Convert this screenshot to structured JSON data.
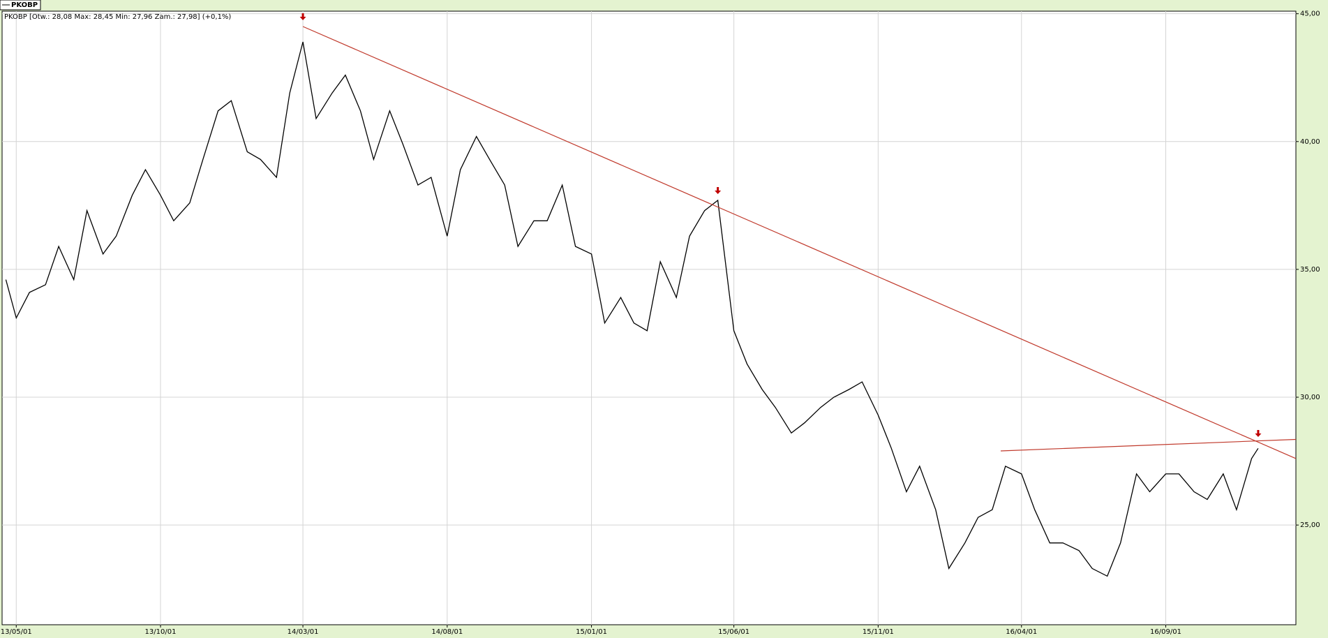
{
  "chart_data": {
    "type": "line",
    "title": "PKOBP [Otw.: 28,08 Max: 28,45 Min: 27,96 Zam.: 27,98] (+0,1%)",
    "x": [
      "2013-04-20",
      "2013-05-01",
      "2013-05-15",
      "2013-06-01",
      "2013-06-15",
      "2013-07-01",
      "2013-07-15",
      "2013-08-01",
      "2013-08-15",
      "2013-09-01",
      "2013-09-15",
      "2013-10-01",
      "2013-10-15",
      "2013-11-01",
      "2013-11-15",
      "2013-12-01",
      "2013-12-15",
      "2014-01-01",
      "2014-01-15",
      "2014-02-01",
      "2014-02-15",
      "2014-03-01",
      "2014-03-15",
      "2014-04-01",
      "2014-04-15",
      "2014-05-01",
      "2014-05-15",
      "2014-06-01",
      "2014-06-15",
      "2014-07-01",
      "2014-07-15",
      "2014-08-01",
      "2014-08-15",
      "2014-09-01",
      "2014-09-15",
      "2014-10-01",
      "2014-10-15",
      "2014-11-01",
      "2014-11-15",
      "2014-12-01",
      "2014-12-15",
      "2015-01-01",
      "2015-01-15",
      "2015-02-01",
      "2015-02-15",
      "2015-03-01",
      "2015-03-15",
      "2015-04-01",
      "2015-04-15",
      "2015-05-01",
      "2015-05-15",
      "2015-06-01",
      "2015-06-15",
      "2015-07-01",
      "2015-07-15",
      "2015-08-01",
      "2015-08-15",
      "2015-09-01",
      "2015-09-15",
      "2015-10-01",
      "2015-10-15",
      "2015-11-01",
      "2015-11-15",
      "2015-12-01",
      "2015-12-15",
      "2016-01-01",
      "2016-01-15",
      "2016-02-01",
      "2016-02-15",
      "2016-03-01",
      "2016-03-15",
      "2016-04-01",
      "2016-04-15",
      "2016-05-01",
      "2016-05-15",
      "2016-06-01",
      "2016-06-15",
      "2016-07-01",
      "2016-07-15",
      "2016-08-01",
      "2016-08-15",
      "2016-09-01",
      "2016-09-15",
      "2016-10-01",
      "2016-10-15",
      "2016-11-01",
      "2016-11-15",
      "2016-12-01",
      "2016-12-08"
    ],
    "series": [
      {
        "name": "PKOBP",
        "color": "#000000",
        "values": [
          34.6,
          33.1,
          34.1,
          34.4,
          35.9,
          34.6,
          37.3,
          35.6,
          36.3,
          37.9,
          38.9,
          37.9,
          36.9,
          37.6,
          39.3,
          41.2,
          41.6,
          39.6,
          39.3,
          38.6,
          41.9,
          43.9,
          40.9,
          41.9,
          42.6,
          41.2,
          39.3,
          41.2,
          39.9,
          38.3,
          38.6,
          36.3,
          38.9,
          40.2,
          39.3,
          38.3,
          35.9,
          36.9,
          36.9,
          38.3,
          35.9,
          35.6,
          32.9,
          33.9,
          32.9,
          32.6,
          35.3,
          33.9,
          36.3,
          37.3,
          37.7,
          32.6,
          31.3,
          30.3,
          29.6,
          28.6,
          29.0,
          29.6,
          30.0,
          30.3,
          30.6,
          29.3,
          28.0,
          26.3,
          27.3,
          25.6,
          23.3,
          24.3,
          25.3,
          25.6,
          27.3,
          27.0,
          25.6,
          24.3,
          24.3,
          24.0,
          23.3,
          23.0,
          24.3,
          27.0,
          26.3,
          27.0,
          27.0,
          26.3,
          26.0,
          27.0,
          25.6,
          27.6,
          28.0
        ]
      }
    ],
    "trendlines": [
      {
        "color": "#c0392b",
        "x": [
          "2014-03-01",
          "2017-01-17"
        ],
        "y": [
          44.5,
          27.6
        ]
      },
      {
        "color": "#c0392b",
        "x": [
          "2016-03-10",
          "2017-01-17"
        ],
        "y": [
          27.9,
          28.35
        ]
      }
    ],
    "markers": [
      {
        "x": "2014-03-01",
        "y": 44.5
      },
      {
        "x": "2015-05-15",
        "y": 37.7
      },
      {
        "x": "2016-12-08",
        "y": 28.2
      }
    ],
    "xlim": [
      "2013-04-16",
      "2017-01-17"
    ],
    "xticks": [
      {
        "value": "2013-05-01",
        "label": "13/05/01"
      },
      {
        "value": "2013-10-01",
        "label": "13/10/01"
      },
      {
        "value": "2014-03-01",
        "label": "14/03/01"
      },
      {
        "value": "2014-08-01",
        "label": "14/08/01"
      },
      {
        "value": "2015-01-01",
        "label": "15/01/01"
      },
      {
        "value": "2015-06-01",
        "label": "15/06/01"
      },
      {
        "value": "2015-11-01",
        "label": "15/11/01"
      },
      {
        "value": "2016-04-01",
        "label": "16/04/01"
      },
      {
        "value": "2016-09-01",
        "label": "16/09/01"
      }
    ],
    "ylim": [
      21.1,
      45.1
    ],
    "yticks": [
      {
        "value": 25,
        "label": "25,00"
      },
      {
        "value": 30,
        "label": "30,00"
      },
      {
        "value": 35,
        "label": "35,00"
      },
      {
        "value": 40,
        "label": "40,00"
      },
      {
        "value": 45,
        "label": "45,00"
      }
    ],
    "grid": true
  }
}
